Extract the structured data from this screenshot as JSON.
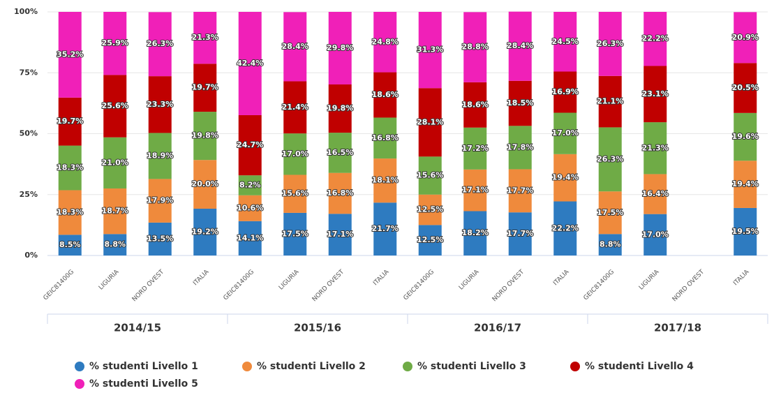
{
  "chart_data": {
    "type": "stacked-bar",
    "categories": [
      "GEIC81400G",
      "LIGURIA",
      "NORD OVEST",
      "ITALIA",
      "GEIC81400G",
      "LIGURIA",
      "NORD OVEST",
      "ITALIA",
      "GEIC81400G",
      "LIGURIA",
      "NORD OVEST",
      "ITALIA",
      "GEIC81400G",
      "LIGURIA",
      "NORD OVEST",
      "ITALIA"
    ],
    "groups": [
      "2014/15",
      "2015/16",
      "2016/17",
      "2017/18"
    ],
    "ylim": [
      0,
      100
    ],
    "yticks": [
      {
        "value": 0,
        "label": "0%"
      },
      {
        "value": 25,
        "label": "25%"
      },
      {
        "value": 50,
        "label": "50%"
      },
      {
        "value": 75,
        "label": "75%"
      },
      {
        "value": 100,
        "label": "100%"
      }
    ],
    "grid": true,
    "series": [
      {
        "name": "% studenti Livello 1",
        "color": "#2e7bc0",
        "values": [
          8.5,
          8.8,
          13.5,
          19.2,
          14.1,
          17.5,
          17.1,
          21.7,
          12.5,
          18.2,
          17.7,
          22.2,
          8.8,
          17.0,
          null,
          19.5
        ],
        "value_labels": [
          "8.5%",
          "8.8%",
          "13.5%",
          "19.2%",
          "14.1%",
          "17.5%",
          "17.1%",
          "21.7%",
          "12.5%",
          "18.2%",
          "17.7%",
          "22.2%",
          "8.8%",
          "17.0%",
          null,
          "19.5%"
        ]
      },
      {
        "name": "% studenti Livello 2",
        "color": "#ef8a3c",
        "values": [
          18.3,
          18.7,
          17.9,
          20.0,
          10.6,
          15.6,
          16.8,
          18.1,
          12.5,
          17.1,
          17.7,
          19.4,
          17.5,
          16.4,
          null,
          19.4
        ],
        "value_labels": [
          "18.3%",
          "18.7%",
          "17.9%",
          "20.0%",
          "10.6%",
          "15.6%",
          "16.8%",
          "18.1%",
          "12.5%",
          "17.1%",
          "17.7%",
          "19.4%",
          "17.5%",
          "16.4%",
          null,
          "19.4%"
        ]
      },
      {
        "name": "% studenti Livello 3",
        "color": "#6fab46",
        "values": [
          18.3,
          21.0,
          18.9,
          19.8,
          8.2,
          17.0,
          16.5,
          16.8,
          15.6,
          17.2,
          17.8,
          17.0,
          26.3,
          21.3,
          null,
          19.6
        ],
        "value_labels": [
          "18.3%",
          "21.0%",
          "18.9%",
          "19.8%",
          "8.2%",
          "17.0%",
          "16.5%",
          "16.8%",
          "15.6%",
          "17.2%",
          "17.8%",
          "17.0%",
          "26.3%",
          "21.3%",
          null,
          "19.6%"
        ]
      },
      {
        "name": "% studenti Livello 4",
        "color": "#c00000",
        "values": [
          19.7,
          25.6,
          23.3,
          19.7,
          24.7,
          21.4,
          19.8,
          18.6,
          28.1,
          18.6,
          18.5,
          16.9,
          21.1,
          23.1,
          null,
          20.5
        ],
        "value_labels": [
          "19.7%",
          "25.6%",
          "23.3%",
          "19.7%",
          "24.7%",
          "21.4%",
          "19.8%",
          "18.6%",
          "28.1%",
          "18.6%",
          "18.5%",
          "16.9%",
          "21.1%",
          "23.1%",
          null,
          "20.5%"
        ]
      },
      {
        "name": "% studenti Livello 5",
        "color": "#f020b8",
        "values": [
          35.2,
          25.9,
          26.3,
          21.3,
          42.4,
          28.4,
          29.8,
          24.8,
          31.3,
          28.8,
          28.4,
          24.5,
          26.3,
          22.2,
          null,
          20.9
        ],
        "value_labels": [
          "35.2%",
          "25.9%",
          "26.3%",
          "21.3%",
          "42.4%",
          "28.4%",
          "29.8%",
          "24.8%",
          "31.3%",
          "28.8%",
          "28.4%",
          "24.5%",
          "26.3%",
          "22.2%",
          null,
          "20.9%"
        ]
      }
    ]
  }
}
